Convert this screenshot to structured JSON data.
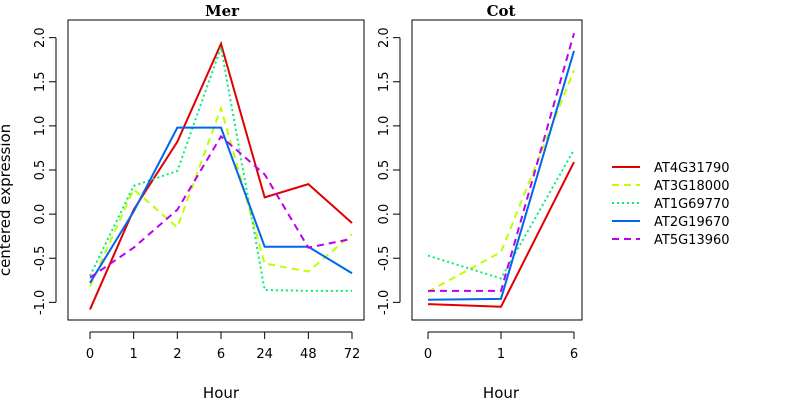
{
  "chart_data": {
    "type": "line",
    "ylabel": "centered expression",
    "legend": {
      "placement": "right",
      "entries": [
        {
          "name": "AT4G31790",
          "color": "#e00000",
          "dash": "solid"
        },
        {
          "name": "AT3G18000",
          "color": "#bfff00",
          "dash": "long-dash"
        },
        {
          "name": "AT1G69770",
          "color": "#00ee77",
          "dash": "dotted"
        },
        {
          "name": "AT2G19670",
          "color": "#0066ee",
          "dash": "solid"
        },
        {
          "name": "AT5G13960",
          "color": "#bb00ee",
          "dash": "long-dash"
        }
      ]
    },
    "panels": [
      {
        "title": "Mer",
        "xlabel": "Hour",
        "categories": [
          "0",
          "1",
          "2",
          "6",
          "24",
          "48",
          "72"
        ],
        "ylim": [
          -1.2,
          2.2
        ],
        "yticks": [
          "-1.0",
          "-0.5",
          "0.0",
          "0.5",
          "1.0",
          "1.5",
          "2.0"
        ],
        "grid": false,
        "series": [
          {
            "name": "AT4G31790",
            "values": [
              -1.08,
              0.05,
              0.82,
              1.93,
              0.19,
              0.34,
              -0.1
            ]
          },
          {
            "name": "AT3G18000",
            "values": [
              -0.82,
              0.28,
              -0.15,
              1.2,
              -0.56,
              -0.65,
              -0.23
            ]
          },
          {
            "name": "AT1G69770",
            "values": [
              -0.7,
              0.32,
              0.49,
              1.89,
              -0.86,
              -0.87,
              -0.87
            ]
          },
          {
            "name": "AT2G19670",
            "values": [
              -0.78,
              0.03,
              0.98,
              0.98,
              -0.37,
              -0.37,
              -0.67
            ]
          },
          {
            "name": "AT5G13960",
            "values": [
              -0.72,
              -0.38,
              0.05,
              0.88,
              0.45,
              -0.38,
              -0.28
            ]
          }
        ]
      },
      {
        "title": "Cot",
        "xlabel": "Hour",
        "categories": [
          "0",
          "1",
          "6"
        ],
        "ylim": [
          -1.2,
          2.2
        ],
        "yticks": [
          "-1.0",
          "-0.5",
          "0.0",
          "0.5",
          "1.0",
          "1.5",
          "2.0"
        ],
        "grid": false,
        "series": [
          {
            "name": "AT4G31790",
            "values": [
              -1.02,
              -1.05,
              0.59
            ]
          },
          {
            "name": "AT3G18000",
            "values": [
              -0.88,
              -0.43,
              1.63
            ]
          },
          {
            "name": "AT1G69770",
            "values": [
              -0.47,
              -0.73,
              0.73
            ]
          },
          {
            "name": "AT2G19670",
            "values": [
              -0.97,
              -0.96,
              1.85
            ]
          },
          {
            "name": "AT5G13960",
            "values": [
              -0.87,
              -0.87,
              2.05
            ]
          }
        ]
      }
    ]
  }
}
